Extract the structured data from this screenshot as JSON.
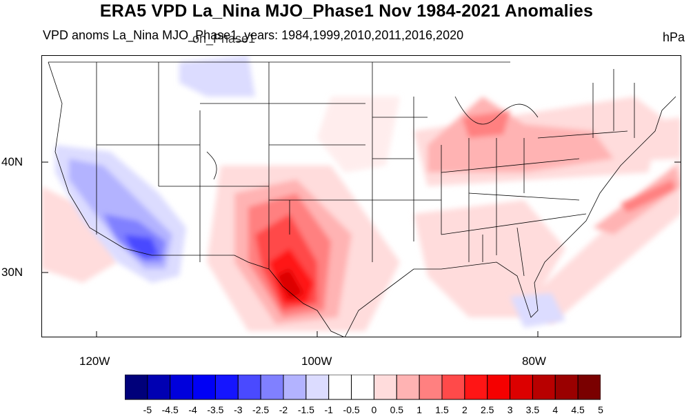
{
  "title": "ERA5 VPD La_Nina MJO_Phase1 Nov 1984-2021 Anomalies",
  "subtitle": "VPD anoms La_Nina MJO_Phase1_years: 1984,1999,2010,2011,2016,2020",
  "subtitle_overlap": "on_Phase1",
  "units": "hPa",
  "map": {
    "region": "contiguous-united-states",
    "lat_labels": [
      "40N",
      "30N"
    ],
    "lon_labels": [
      "120W",
      "100W",
      "80W"
    ],
    "anomaly_regions": [
      {
        "name": "texas-new-mexico-high",
        "level": 4.5,
        "sign": "positive"
      },
      {
        "name": "great-lakes-ohio-valley",
        "level": 1.5,
        "sign": "positive"
      },
      {
        "name": "northeast-us",
        "level": 1.5,
        "sign": "positive"
      },
      {
        "name": "atlantic-offshore",
        "level": 2.0,
        "sign": "positive"
      },
      {
        "name": "southeast-us",
        "level": 1.0,
        "sign": "positive"
      },
      {
        "name": "california-southwest",
        "level": -2.5,
        "sign": "negative"
      },
      {
        "name": "northwest",
        "level": -1.0,
        "sign": "negative"
      }
    ]
  },
  "colorbar": {
    "labels": [
      "-5",
      "-4.5",
      "-4",
      "-3.5",
      "-3",
      "-2.5",
      "-2",
      "-1.5",
      "-1",
      "-0.5",
      "0",
      "0.5",
      "1",
      "1.5",
      "2",
      "2.5",
      "3",
      "3.5",
      "4",
      "4.5",
      "5"
    ],
    "colors": [
      "#00007a",
      "#0000b2",
      "#0000dc",
      "#0000f5",
      "#1515ff",
      "#4a4aff",
      "#8080ff",
      "#b3b3ff",
      "#dcdcff",
      "#ffffff",
      "#ffffff",
      "#ffdcdc",
      "#ffb3b3",
      "#ff8080",
      "#ff4a4a",
      "#ff1515",
      "#f50000",
      "#dc0000",
      "#b80000",
      "#9a0000",
      "#7a0000"
    ]
  }
}
